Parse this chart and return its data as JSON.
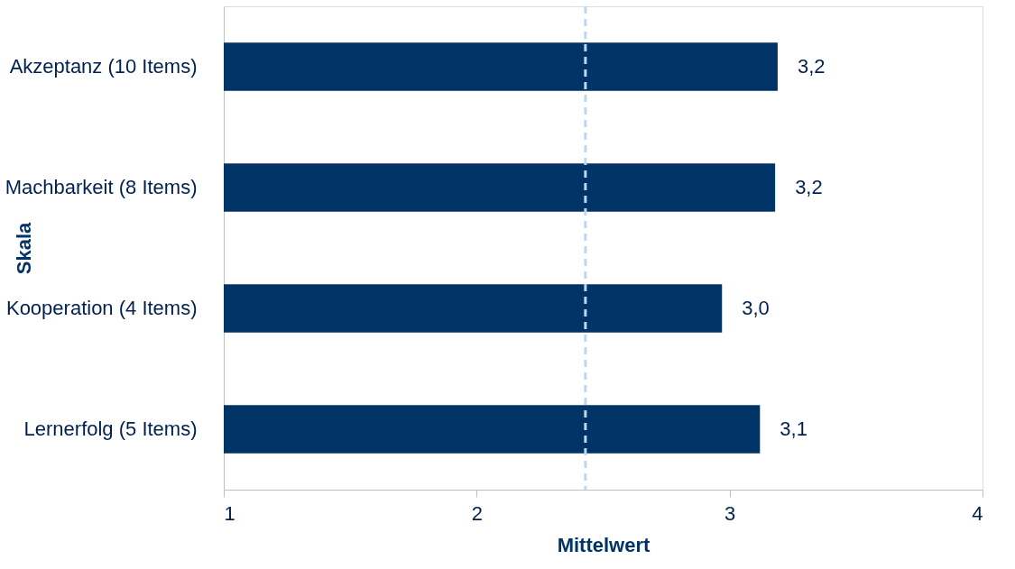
{
  "chart_data": {
    "type": "bar",
    "orientation": "horizontal",
    "ylabel": "Skala",
    "xlabel": "Mittelwert",
    "categories": [
      "Akzeptanz (10 Items)",
      "Machbarkeit (8 Items)",
      "Kooperation (4 Items)",
      "Lernerfolg (5 Items)"
    ],
    "values": [
      3.19,
      3.18,
      2.97,
      3.12
    ],
    "color": "#003366",
    "value_labels": [
      "3,2",
      "3,2",
      "3,0",
      "3,1"
    ],
    "xlim": [
      1,
      4
    ],
    "xticks": [
      1,
      2,
      3,
      4
    ],
    "grid": false,
    "ref_lines": [
      {
        "axis": "x",
        "value": 2.43,
        "color": "#bdd7ee",
        "line_style": "dashed"
      }
    ]
  }
}
